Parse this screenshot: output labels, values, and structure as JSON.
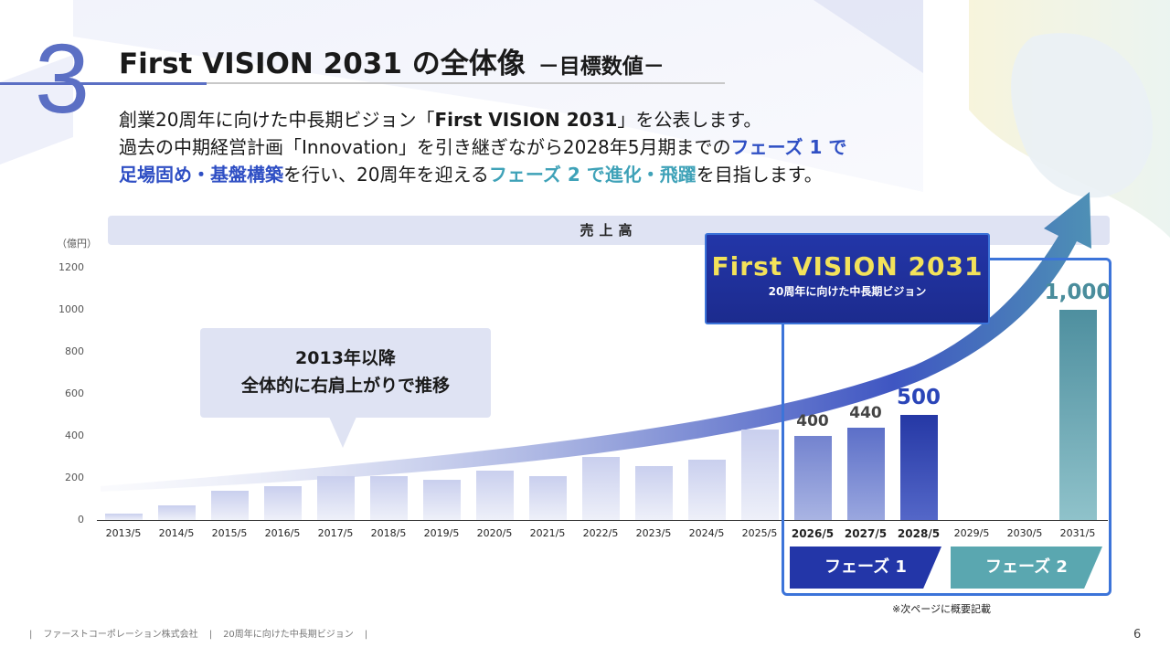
{
  "header": {
    "section_number": "3",
    "title": "First VISION 2031 の全体像",
    "subtitle": "－目標数値－"
  },
  "description": {
    "line1": {
      "pre": "創業20周年に向けた中長期ビジョン「",
      "bold": "First VISION 2031",
      "post": "」を公表します。"
    },
    "line2": {
      "pre": "過去の中期経営計画「Innovation」を引き継ぎながら2028年5月期までの",
      "hl1": "フェーズ 1 で"
    },
    "line3": {
      "hl1": "足場固め・基盤構築",
      "mid": "を行い、20周年を迎える",
      "hl2": "フェーズ 2 で進化・飛躍",
      "post": "を目指します。"
    }
  },
  "callout": {
    "line1": "2013年以降",
    "line2": "全体的に右肩上がりで推移"
  },
  "vision_box": {
    "title": "First VISION 2031",
    "subtitle": "20周年に向けた中長期ビジョン"
  },
  "phases": {
    "phase1": "フェーズ 1",
    "phase2": "フェーズ 2"
  },
  "note": "※次ページに概要記載",
  "footer": {
    "company": "ファーストコーポレーション株式会社",
    "doc": "20周年に向けた中長期ビジョン",
    "separator": "|"
  },
  "page_number": "6",
  "colors": {
    "accent": "#5b6fc4",
    "phase1": "#2336a8",
    "phase2": "#5aa7b0",
    "vision_title": "#f3e25a"
  },
  "chart_data": {
    "type": "bar",
    "title": "売上高",
    "ylabel": "（億円）",
    "ylim": [
      0,
      1200
    ],
    "yticks": [
      0,
      200,
      400,
      600,
      800,
      1000,
      1200
    ],
    "categories": [
      "2013/5",
      "2014/5",
      "2015/5",
      "2016/5",
      "2017/5",
      "2018/5",
      "2019/5",
      "2020/5",
      "2021/5",
      "2022/5",
      "2023/5",
      "2024/5",
      "2025/5",
      "2026/5",
      "2027/5",
      "2028/5",
      "2029/5",
      "2030/5",
      "2031/5"
    ],
    "values": [
      32,
      70,
      140,
      163,
      210,
      208,
      192,
      235,
      210,
      302,
      255,
      285,
      432,
      400,
      440,
      500,
      null,
      null,
      1000
    ],
    "bold_categories": [
      "2026/5",
      "2027/5",
      "2028/5"
    ],
    "data_labels": [
      {
        "category": "2026/5",
        "label": "400"
      },
      {
        "category": "2027/5",
        "label": "440"
      },
      {
        "category": "2028/5",
        "label": "500"
      },
      {
        "category": "2031/5",
        "label": "1,000"
      }
    ]
  }
}
